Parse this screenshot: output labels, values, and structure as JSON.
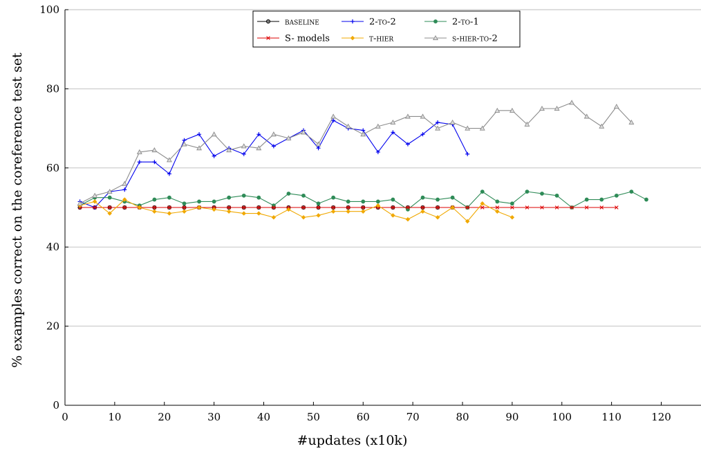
{
  "chart_data": {
    "type": "line",
    "title": "",
    "xlabel": "#updates (x10k)",
    "ylabel": "% examples correct on the coreference test set",
    "xlim": [
      0,
      128
    ],
    "ylim": [
      0,
      100
    ],
    "xticks": [
      0,
      10,
      20,
      30,
      40,
      50,
      60,
      70,
      80,
      90,
      100,
      110,
      120
    ],
    "yticks": [
      0,
      20,
      40,
      60,
      80,
      100
    ],
    "grid": "horizontal",
    "legend_position": "top-center",
    "series": [
      {
        "name": "BASELINE",
        "color": "#000000",
        "marker": "circle",
        "x": [
          3,
          6,
          9,
          12,
          15,
          18,
          21,
          24,
          27,
          30,
          33,
          36,
          39,
          42,
          45,
          48,
          51,
          54,
          57,
          60,
          63,
          66,
          69,
          72,
          75,
          78,
          81
        ],
        "y": [
          50,
          50,
          50,
          50,
          50,
          50,
          50,
          50,
          50,
          50,
          50,
          50,
          50,
          50,
          50,
          50,
          50,
          50,
          50,
          50,
          50,
          50,
          50,
          50,
          50,
          50,
          50
        ]
      },
      {
        "name": "2-TO-2",
        "color": "#0000ee",
        "marker": "plus",
        "x": [
          3,
          6,
          9,
          12,
          15,
          18,
          21,
          24,
          27,
          30,
          33,
          36,
          39,
          42,
          45,
          48,
          51,
          54,
          57,
          60,
          63,
          66,
          69,
          72,
          75,
          78,
          81
        ],
        "y": [
          51.5,
          50,
          54,
          54.5,
          61.5,
          61.5,
          58.5,
          67,
          68.5,
          63,
          65,
          63.5,
          68.5,
          65.5,
          67.5,
          69.5,
          65,
          72,
          70,
          69.5,
          64,
          69,
          66,
          68.5,
          71.5,
          71,
          63.5
        ]
      },
      {
        "name": "2-TO-1",
        "color": "#2e8b57",
        "marker": "dot",
        "x": [
          3,
          6,
          9,
          12,
          15,
          18,
          21,
          24,
          27,
          30,
          33,
          36,
          39,
          42,
          45,
          48,
          51,
          54,
          57,
          60,
          63,
          66,
          69,
          72,
          75,
          78,
          81,
          84,
          87,
          90,
          93,
          96,
          99,
          102,
          105,
          108,
          111,
          114,
          117
        ],
        "y": [
          50.5,
          52.5,
          52.5,
          51.5,
          50.5,
          52,
          52.5,
          51,
          51.5,
          51.5,
          52.5,
          53,
          52.5,
          50.5,
          53.5,
          53,
          51,
          52.5,
          51.5,
          51.5,
          51.5,
          52,
          49.5,
          52.5,
          52,
          52.5,
          50,
          54,
          51.5,
          51,
          54,
          53.5,
          53,
          50,
          52,
          52,
          53,
          54,
          52
        ]
      },
      {
        "name": "S- models",
        "color": "#dd0000",
        "marker": "cross",
        "x": [
          3,
          6,
          9,
          12,
          15,
          18,
          21,
          24,
          27,
          30,
          33,
          36,
          39,
          42,
          45,
          48,
          51,
          54,
          57,
          60,
          63,
          66,
          69,
          72,
          75,
          78,
          81,
          84,
          87,
          90,
          93,
          96,
          99,
          102,
          105,
          108,
          111
        ],
        "y": [
          50,
          50,
          50,
          50,
          50,
          50,
          50,
          50,
          50,
          50,
          50,
          50,
          50,
          50,
          50,
          50,
          50,
          50,
          50,
          50,
          50,
          50,
          50,
          50,
          50,
          50,
          50,
          50,
          50,
          50,
          50,
          50,
          50,
          50,
          50,
          50,
          50
        ]
      },
      {
        "name": "T-HIER",
        "color": "#f0a800",
        "marker": "diamond",
        "x": [
          3,
          6,
          9,
          12,
          15,
          18,
          21,
          24,
          27,
          30,
          33,
          36,
          39,
          42,
          45,
          48,
          51,
          54,
          57,
          60,
          63,
          66,
          69,
          72,
          75,
          78,
          81,
          84,
          87,
          90
        ],
        "y": [
          50.5,
          51.5,
          48.5,
          52,
          50,
          49,
          48.5,
          49,
          50,
          49.5,
          49,
          48.5,
          48.5,
          47.5,
          49.5,
          47.5,
          48,
          49,
          49,
          49,
          50.5,
          48,
          47,
          49,
          47.5,
          50,
          46.5,
          51,
          49,
          47.5
        ]
      },
      {
        "name": "S-HIER-TO-2",
        "color": "#8c8c8c",
        "marker": "triangle",
        "x": [
          3,
          6,
          9,
          12,
          15,
          18,
          21,
          24,
          27,
          30,
          33,
          36,
          39,
          42,
          45,
          48,
          51,
          54,
          57,
          60,
          63,
          66,
          69,
          72,
          75,
          78,
          81,
          84,
          87,
          90,
          93,
          96,
          99,
          102,
          105,
          108,
          111,
          114
        ],
        "y": [
          51,
          53,
          54,
          56,
          64,
          64.5,
          62,
          66,
          65,
          68.5,
          64.5,
          65.5,
          65,
          68.5,
          67.5,
          69,
          66,
          73,
          70.5,
          68.5,
          70.5,
          71.5,
          73,
          73,
          70,
          71.5,
          70,
          70,
          74.5,
          74.5,
          71,
          75,
          75,
          76.5,
          73,
          70.5,
          75.5,
          71.5
        ]
      }
    ]
  }
}
